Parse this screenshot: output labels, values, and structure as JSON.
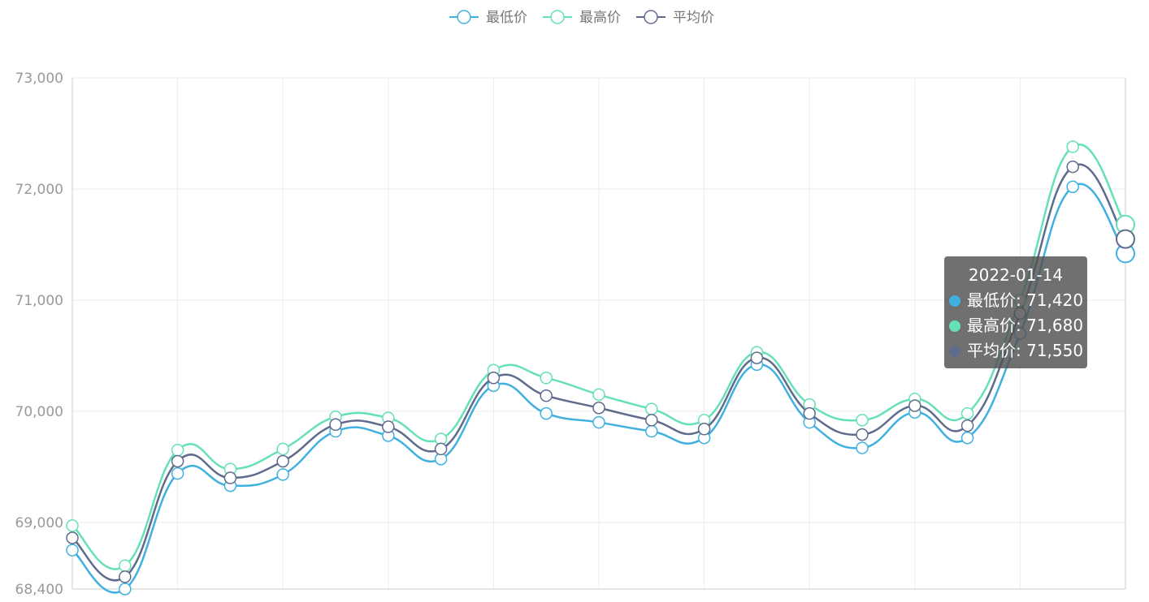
{
  "chart_data": {
    "type": "line",
    "smooth": true,
    "legend_position": "top-center",
    "grid": true,
    "ylim": [
      68400,
      73000
    ],
    "yticks": [
      "73,000",
      "72,000",
      "71,000",
      "70,000",
      "69,000",
      "68,400"
    ],
    "series": [
      {
        "name": "最低价",
        "color": "#40b0e0",
        "values": [
          68750,
          68400,
          69440,
          69330,
          69430,
          69820,
          69780,
          69570,
          70230,
          69980,
          69900,
          69820,
          69760,
          70420,
          69900,
          69670,
          69990,
          69760,
          70700,
          72020,
          71420
        ]
      },
      {
        "name": "最高价",
        "color": "#66e0b8",
        "values": [
          68970,
          68610,
          69650,
          69480,
          69660,
          69950,
          69940,
          69750,
          70370,
          70300,
          70150,
          70020,
          69920,
          70530,
          70060,
          69920,
          70110,
          69980,
          71000,
          72380,
          71680
        ]
      },
      {
        "name": "平均价",
        "color": "#5f6b8c",
        "values": [
          68860,
          68510,
          69550,
          69400,
          69550,
          69880,
          69860,
          69660,
          70300,
          70140,
          70030,
          69920,
          69840,
          70480,
          69980,
          69790,
          70050,
          69870,
          70880,
          72200,
          71550
        ]
      }
    ]
  },
  "tooltip": {
    "title": "2022-01-14",
    "rows": [
      {
        "label": "最低价: 71,420",
        "color": "#40b0e0"
      },
      {
        "label": "最高价: 71,680",
        "color": "#66e0b8"
      },
      {
        "label": "平均价: 71,550",
        "color": "#5f6b8c"
      }
    ]
  }
}
